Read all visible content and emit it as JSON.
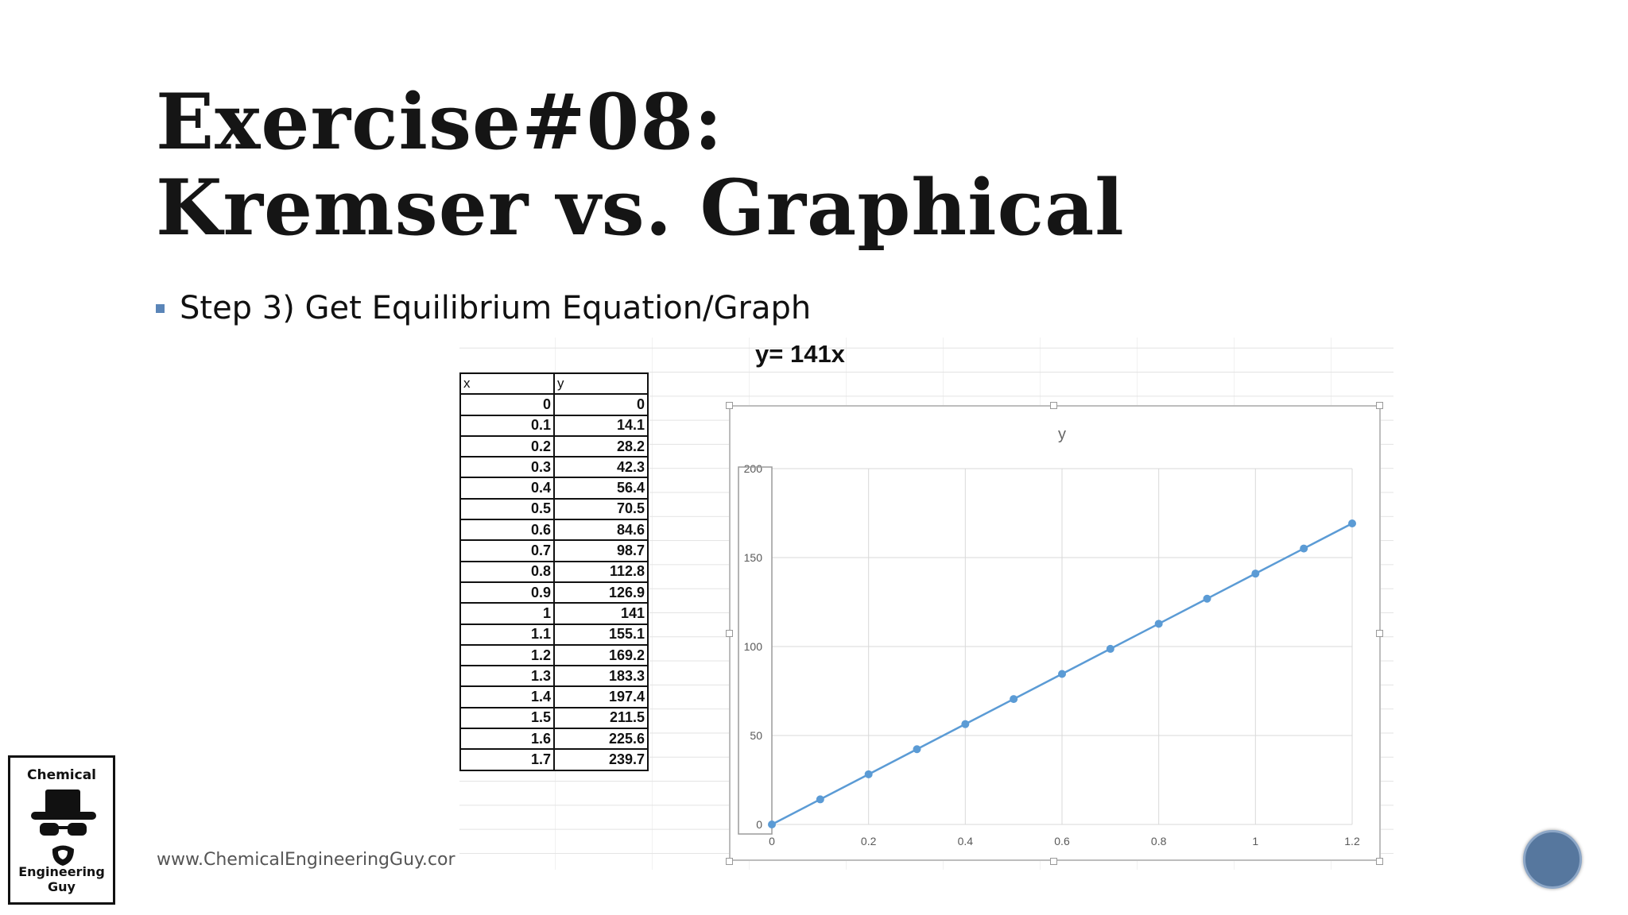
{
  "slide": {
    "title_line1": "Exercise#08:",
    "title_line2": "Kremser vs. Graphical",
    "bullet": "Step 3) Get Equilibrium Equation/Graph",
    "footer": "www.ChemicalEngineeringGuy.cor",
    "formula": "y= 141x",
    "accent_color": "#5a85b8"
  },
  "table": {
    "headers": [
      "x",
      "y"
    ],
    "rows": [
      [
        "0",
        "0"
      ],
      [
        "0.1",
        "14.1"
      ],
      [
        "0.2",
        "28.2"
      ],
      [
        "0.3",
        "42.3"
      ],
      [
        "0.4",
        "56.4"
      ],
      [
        "0.5",
        "70.5"
      ],
      [
        "0.6",
        "84.6"
      ],
      [
        "0.7",
        "98.7"
      ],
      [
        "0.8",
        "112.8"
      ],
      [
        "0.9",
        "126.9"
      ],
      [
        "1",
        "141"
      ],
      [
        "1.1",
        "155.1"
      ],
      [
        "1.2",
        "169.2"
      ],
      [
        "1.3",
        "183.3"
      ],
      [
        "1.4",
        "197.4"
      ],
      [
        "1.5",
        "211.5"
      ],
      [
        "1.6",
        "225.6"
      ],
      [
        "1.7",
        "239.7"
      ]
    ]
  },
  "chart_data": {
    "type": "line",
    "title": "y",
    "xlabel": "",
    "ylabel": "",
    "x": [
      0,
      0.1,
      0.2,
      0.3,
      0.4,
      0.5,
      0.6,
      0.7,
      0.8,
      0.9,
      1,
      1.1,
      1.2
    ],
    "series": [
      {
        "values": [
          0,
          14.1,
          28.2,
          42.3,
          56.4,
          70.5,
          84.6,
          98.7,
          112.8,
          126.9,
          141,
          155.1,
          169.2
        ],
        "color": "#5b9bd5"
      }
    ],
    "xlim": [
      0,
      1.2
    ],
    "ylim": [
      0,
      200
    ],
    "xticks": [
      "0",
      "0.2",
      "0.4",
      "0.6",
      "0.8",
      "1",
      "1.2"
    ],
    "yticks": [
      "0",
      "50",
      "100",
      "150",
      "200"
    ],
    "grid": true,
    "legend": "none"
  },
  "logo": {
    "top": "Chemical",
    "bottom": "Engineering Guy"
  }
}
